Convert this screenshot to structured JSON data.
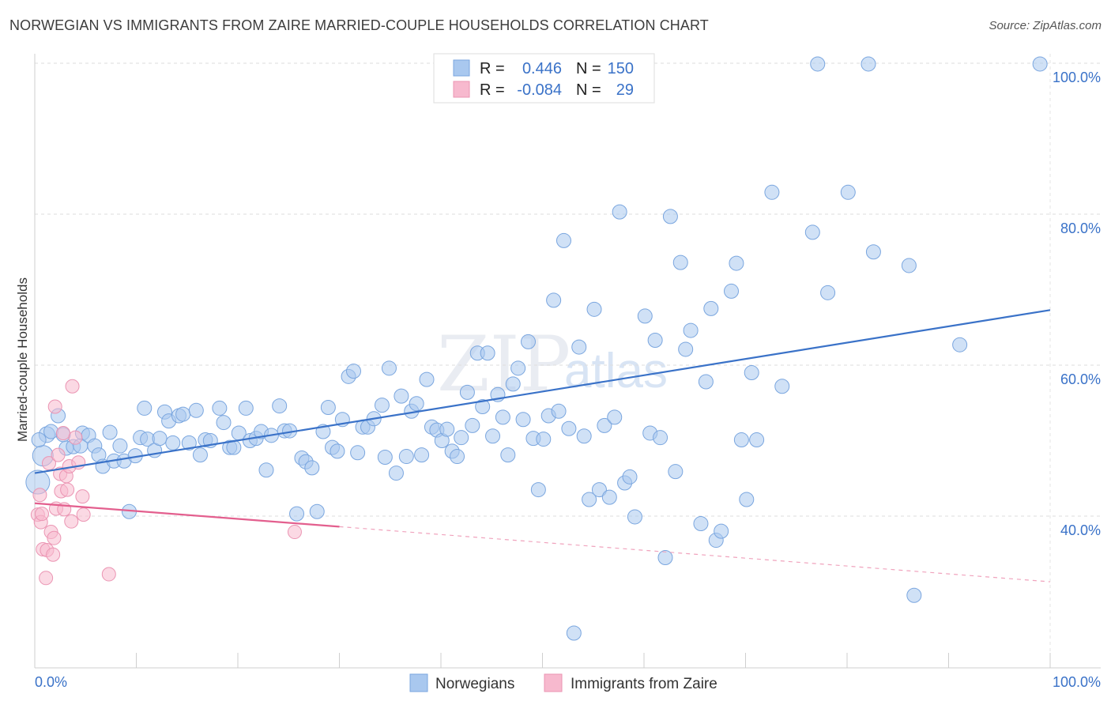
{
  "title": "NORWEGIAN VS IMMIGRANTS FROM ZAIRE MARRIED-COUPLE HOUSEHOLDS CORRELATION CHART",
  "source": "Source: ZipAtlas.com",
  "watermark": {
    "zip": "ZIP",
    "atlas": "atlas"
  },
  "colors": {
    "blue": "#3a72c8",
    "blue_fill": "#a9c8ef",
    "pink": "#e35f8e",
    "pink_fill": "#f7b9ce"
  },
  "legend": {
    "r_label": "R =",
    "n_label": "N =",
    "series1": {
      "r": "0.446",
      "n": "150"
    },
    "series2": {
      "r": "-0.084",
      "n": "29"
    }
  },
  "chart_data": {
    "type": "scatter",
    "xlabel": "",
    "ylabel": "Married-couple Households",
    "xlim": [
      0,
      100
    ],
    "ylim": [
      20,
      100
    ],
    "x_tick_labels": [
      "0.0%",
      "100.0%"
    ],
    "y_tick_labels": [
      "100.0%",
      "80.0%",
      "60.0%",
      "40.0%"
    ],
    "y_ticks": [
      100,
      80,
      60,
      40
    ],
    "grid": true,
    "series": [
      {
        "name": "Norwegians",
        "trend": {
          "x": [
            0,
            100
          ],
          "y": [
            45.7,
            67.3
          ]
        },
        "points": [
          [
            0.3,
            44.5
          ],
          [
            0.8,
            48.0
          ],
          [
            1.2,
            50.8
          ],
          [
            1.6,
            51.2
          ],
          [
            2.3,
            53.3
          ],
          [
            2.8,
            50.8
          ],
          [
            3.1,
            49.0
          ],
          [
            3.8,
            49.2
          ],
          [
            4.7,
            51.0
          ],
          [
            4.5,
            49.3
          ],
          [
            5.3,
            50.7
          ],
          [
            5.9,
            49.3
          ],
          [
            6.3,
            48.1
          ],
          [
            6.7,
            46.6
          ],
          [
            7.4,
            51.1
          ],
          [
            7.8,
            47.3
          ],
          [
            8.4,
            49.3
          ],
          [
            8.8,
            47.3
          ],
          [
            9.3,
            40.6
          ],
          [
            9.9,
            48.0
          ],
          [
            10.4,
            50.4
          ],
          [
            10.8,
            54.3
          ],
          [
            11.1,
            50.2
          ],
          [
            11.8,
            48.7
          ],
          [
            12.3,
            50.3
          ],
          [
            12.8,
            53.8
          ],
          [
            13.2,
            52.6
          ],
          [
            13.6,
            49.7
          ],
          [
            14.2,
            53.3
          ],
          [
            14.6,
            53.5
          ],
          [
            15.2,
            49.7
          ],
          [
            15.9,
            54.0
          ],
          [
            16.3,
            48.1
          ],
          [
            16.8,
            50.1
          ],
          [
            17.3,
            50.0
          ],
          [
            18.2,
            54.3
          ],
          [
            18.6,
            52.4
          ],
          [
            19.2,
            49.1
          ],
          [
            19.6,
            49.1
          ],
          [
            20.1,
            51.0
          ],
          [
            20.8,
            54.3
          ],
          [
            21.2,
            50.0
          ],
          [
            21.8,
            50.3
          ],
          [
            22.3,
            51.2
          ],
          [
            22.8,
            46.1
          ],
          [
            23.3,
            50.7
          ],
          [
            24.1,
            54.6
          ],
          [
            24.6,
            51.3
          ],
          [
            25.1,
            51.3
          ],
          [
            25.8,
            40.3
          ],
          [
            26.3,
            47.7
          ],
          [
            26.7,
            47.2
          ],
          [
            27.3,
            46.4
          ],
          [
            27.8,
            40.6
          ],
          [
            28.4,
            51.2
          ],
          [
            28.9,
            54.4
          ],
          [
            29.3,
            49.1
          ],
          [
            29.8,
            48.6
          ],
          [
            30.3,
            52.8
          ],
          [
            30.9,
            58.5
          ],
          [
            31.4,
            59.2
          ],
          [
            31.8,
            48.4
          ],
          [
            32.3,
            51.8
          ],
          [
            32.8,
            51.8
          ],
          [
            33.4,
            52.9
          ],
          [
            34.2,
            54.7
          ],
          [
            34.5,
            47.8
          ],
          [
            34.9,
            59.6
          ],
          [
            35.6,
            45.7
          ],
          [
            36.1,
            55.9
          ],
          [
            36.6,
            47.9
          ],
          [
            37.1,
            53.9
          ],
          [
            37.6,
            54.9
          ],
          [
            38.1,
            48.1
          ],
          [
            38.6,
            58.1
          ],
          [
            39.1,
            51.8
          ],
          [
            39.6,
            51.4
          ],
          [
            40.1,
            50.0
          ],
          [
            40.6,
            51.5
          ],
          [
            41.1,
            48.6
          ],
          [
            41.6,
            47.9
          ],
          [
            42.0,
            50.4
          ],
          [
            42.6,
            56.4
          ],
          [
            43.1,
            52.0
          ],
          [
            43.6,
            61.6
          ],
          [
            44.1,
            54.5
          ],
          [
            44.6,
            61.6
          ],
          [
            45.1,
            50.6
          ],
          [
            45.6,
            56.1
          ],
          [
            46.1,
            53.1
          ],
          [
            46.6,
            48.1
          ],
          [
            47.1,
            57.5
          ],
          [
            47.6,
            59.6
          ],
          [
            48.1,
            52.8
          ],
          [
            48.6,
            63.1
          ],
          [
            49.1,
            50.3
          ],
          [
            49.6,
            43.5
          ],
          [
            50.1,
            50.2
          ],
          [
            50.6,
            53.3
          ],
          [
            51.1,
            68.6
          ],
          [
            51.6,
            53.9
          ],
          [
            52.1,
            76.5
          ],
          [
            52.6,
            51.6
          ],
          [
            53.1,
            24.5
          ],
          [
            53.6,
            62.4
          ],
          [
            54.1,
            50.6
          ],
          [
            54.6,
            42.2
          ],
          [
            55.1,
            67.4
          ],
          [
            55.6,
            43.5
          ],
          [
            56.1,
            52.0
          ],
          [
            56.6,
            42.5
          ],
          [
            57.1,
            53.1
          ],
          [
            57.6,
            80.3
          ],
          [
            58.1,
            44.4
          ],
          [
            58.6,
            45.2
          ],
          [
            59.1,
            39.9
          ],
          [
            60.1,
            66.5
          ],
          [
            60.6,
            51.0
          ],
          [
            61.1,
            63.3
          ],
          [
            61.6,
            50.4
          ],
          [
            62.1,
            34.5
          ],
          [
            62.6,
            79.7
          ],
          [
            63.1,
            45.9
          ],
          [
            63.6,
            73.6
          ],
          [
            64.1,
            62.1
          ],
          [
            64.6,
            64.6
          ],
          [
            65.6,
            39.0
          ],
          [
            66.1,
            57.8
          ],
          [
            66.6,
            67.5
          ],
          [
            67.1,
            36.8
          ],
          [
            67.6,
            38.0
          ],
          [
            68.6,
            69.8
          ],
          [
            69.1,
            73.5
          ],
          [
            69.6,
            50.1
          ],
          [
            70.1,
            42.2
          ],
          [
            70.6,
            59.0
          ],
          [
            71.1,
            50.1
          ],
          [
            72.6,
            82.9
          ],
          [
            73.6,
            57.2
          ],
          [
            76.6,
            77.6
          ],
          [
            77.1,
            99.9
          ],
          [
            78.1,
            69.6
          ],
          [
            80.1,
            82.9
          ],
          [
            82.1,
            99.9
          ],
          [
            82.6,
            75.0
          ],
          [
            86.1,
            73.2
          ],
          [
            86.6,
            29.5
          ],
          [
            91.1,
            62.7
          ],
          [
            99.0,
            99.9
          ],
          [
            0.4,
            50.1
          ]
        ]
      },
      {
        "name": "Immigrants from Zaire",
        "trend": {
          "x": [
            0,
            30
          ],
          "y": [
            41.7,
            38.6
          ]
        },
        "trend_dashed": {
          "x": [
            30,
            100
          ],
          "y": [
            38.6,
            31.3
          ]
        },
        "points": [
          [
            0.3,
            40.2
          ],
          [
            0.5,
            42.8
          ],
          [
            0.6,
            39.2
          ],
          [
            0.7,
            40.3
          ],
          [
            0.8,
            35.6
          ],
          [
            1.1,
            31.8
          ],
          [
            1.2,
            35.5
          ],
          [
            1.4,
            47.0
          ],
          [
            1.6,
            37.9
          ],
          [
            1.8,
            34.9
          ],
          [
            1.9,
            37.1
          ],
          [
            2.0,
            54.5
          ],
          [
            2.1,
            41.0
          ],
          [
            2.3,
            48.1
          ],
          [
            2.5,
            45.6
          ],
          [
            2.6,
            43.3
          ],
          [
            2.8,
            51.0
          ],
          [
            2.9,
            40.9
          ],
          [
            3.1,
            45.3
          ],
          [
            3.4,
            46.6
          ],
          [
            3.2,
            43.5
          ],
          [
            3.6,
            39.3
          ],
          [
            3.7,
            57.2
          ],
          [
            4.0,
            50.4
          ],
          [
            4.3,
            47.1
          ],
          [
            4.7,
            42.6
          ],
          [
            4.8,
            40.2
          ],
          [
            7.3,
            32.3
          ],
          [
            25.6,
            37.9
          ]
        ]
      }
    ]
  },
  "bottom_legend": {
    "series1": "Norwegians",
    "series2": "Immigrants from Zaire"
  }
}
